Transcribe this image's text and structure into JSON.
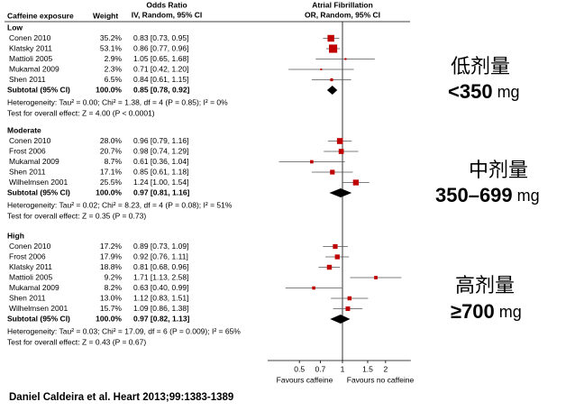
{
  "chart_data": {
    "type": "forest",
    "header": {
      "study": "Caffeine exposure",
      "weight": "Weight",
      "ci_title": "Odds Ratio",
      "ci_method": "IV, Random, 95% CI",
      "plot_title": "Atrial Fibrillation",
      "plot_method": "OR, Random, 95% CI"
    },
    "xscale": "log",
    "xlim": [
      0.3,
      3.0
    ],
    "xticks": [
      0.5,
      0.7,
      1,
      1.5,
      2
    ],
    "x_left_label": "Favours caffeine",
    "x_right_label": "Favours no caffeine",
    "square_color": "#c00000",
    "line_color": "#555555",
    "diamond_color": "#000000",
    "groups": [
      {
        "name": "Low",
        "studies": [
          {
            "name": "Conen 2010",
            "weight": 35.2,
            "weight_label": "35.2%",
            "or": 0.83,
            "lower": 0.73,
            "upper": 0.95,
            "ci_label": "0.83 [0.73, 0.95]"
          },
          {
            "name": "Klatsky 2011",
            "weight": 53.1,
            "weight_label": "53.1%",
            "or": 0.86,
            "lower": 0.77,
            "upper": 0.96,
            "ci_label": "0.86 [0.77, 0.96]"
          },
          {
            "name": "Mattioli 2005",
            "weight": 2.9,
            "weight_label": "2.9%",
            "or": 1.05,
            "lower": 0.65,
            "upper": 1.68,
            "ci_label": "1.05 [0.65, 1.68]"
          },
          {
            "name": "Mukamal 2009",
            "weight": 2.3,
            "weight_label": "2.3%",
            "or": 0.71,
            "lower": 0.42,
            "upper": 1.2,
            "ci_label": "0.71 [0.42, 1.20]"
          },
          {
            "name": "Shen 2011",
            "weight": 6.5,
            "weight_label": "6.5%",
            "or": 0.84,
            "lower": 0.61,
            "upper": 1.15,
            "ci_label": "0.84 [0.61, 1.15]"
          }
        ],
        "subtotal": {
          "name": "Subtotal (95% CI)",
          "weight": 100.0,
          "weight_label": "100.0%",
          "or": 0.85,
          "lower": 0.78,
          "upper": 0.92,
          "ci_label": "0.85 [0.78, 0.92]"
        },
        "heterogeneity": "Heterogeneity: Tau² = 0.00; Chi² = 1.38, df = 4 (P = 0.85); I² = 0%",
        "test": "Test for overall effect: Z = 4.00 (P < 0.0001)"
      },
      {
        "name": "Moderate",
        "studies": [
          {
            "name": "Conen 2010",
            "weight": 28.0,
            "weight_label": "28.0%",
            "or": 0.96,
            "lower": 0.79,
            "upper": 1.16,
            "ci_label": "0.96 [0.79, 1.16]"
          },
          {
            "name": "Frost 2006",
            "weight": 20.7,
            "weight_label": "20.7%",
            "or": 0.98,
            "lower": 0.74,
            "upper": 1.29,
            "ci_label": "0.98 [0.74, 1.29]"
          },
          {
            "name": "Mukamal 2009",
            "weight": 8.7,
            "weight_label": "8.7%",
            "or": 0.61,
            "lower": 0.36,
            "upper": 1.04,
            "ci_label": "0.61 [0.36, 1.04]"
          },
          {
            "name": "Shen 2011",
            "weight": 17.1,
            "weight_label": "17.1%",
            "or": 0.85,
            "lower": 0.61,
            "upper": 1.18,
            "ci_label": "0.85 [0.61, 1.18]"
          },
          {
            "name": "Wilhelmsen 2001",
            "weight": 25.5,
            "weight_label": "25.5%",
            "or": 1.24,
            "lower": 1.0,
            "upper": 1.54,
            "ci_label": "1.24 [1.00, 1.54]"
          }
        ],
        "subtotal": {
          "name": "Subtotal (95% CI)",
          "weight": 100.0,
          "weight_label": "100.0%",
          "or": 0.97,
          "lower": 0.81,
          "upper": 1.16,
          "ci_label": "0.97 [0.81, 1.16]"
        },
        "heterogeneity": "Heterogeneity: Tau² = 0.02; Chi² = 8.23, df = 4 (P = 0.08); I² = 51%",
        "test": "Test for overall effect: Z = 0.35 (P = 0.73)"
      },
      {
        "name": "High",
        "studies": [
          {
            "name": "Conen 2010",
            "weight": 17.2,
            "weight_label": "17.2%",
            "or": 0.89,
            "lower": 0.73,
            "upper": 1.09,
            "ci_label": "0.89 [0.73, 1.09]"
          },
          {
            "name": "Frost 2006",
            "weight": 17.9,
            "weight_label": "17.9%",
            "or": 0.92,
            "lower": 0.76,
            "upper": 1.11,
            "ci_label": "0.92 [0.76, 1.11]"
          },
          {
            "name": "Klatsky 2011",
            "weight": 18.8,
            "weight_label": "18.8%",
            "or": 0.81,
            "lower": 0.68,
            "upper": 0.96,
            "ci_label": "0.81 [0.68, 0.96]"
          },
          {
            "name": "Mattioli 2005",
            "weight": 9.2,
            "weight_label": "9.2%",
            "or": 1.71,
            "lower": 1.13,
            "upper": 2.58,
            "ci_label": "1.71 [1.13, 2.58]"
          },
          {
            "name": "Mukamal 2009",
            "weight": 8.2,
            "weight_label": "8.2%",
            "or": 0.63,
            "lower": 0.4,
            "upper": 0.99,
            "ci_label": "0.63 [0.40, 0.99]"
          },
          {
            "name": "Shen 2011",
            "weight": 13.0,
            "weight_label": "13.0%",
            "or": 1.12,
            "lower": 0.83,
            "upper": 1.51,
            "ci_label": "1.12 [0.83, 1.51]"
          },
          {
            "name": "Wilhelmsen 2001",
            "weight": 15.7,
            "weight_label": "15.7%",
            "or": 1.09,
            "lower": 0.86,
            "upper": 1.38,
            "ci_label": "1.09 [0.86, 1.38]"
          }
        ],
        "subtotal": {
          "name": "Subtotal (95% CI)",
          "weight": 100.0,
          "weight_label": "100.0%",
          "or": 0.97,
          "lower": 0.82,
          "upper": 1.13,
          "ci_label": "0.97 [0.82, 1.13]"
        },
        "heterogeneity": "Heterogeneity: Tau² = 0.03; Chi² = 17.09, df = 6 (P = 0.009); I² = 65%",
        "test": "Test for overall effect: Z = 0.43 (P = 0.67)"
      }
    ],
    "annotations": [
      {
        "line1": "低剂量",
        "value": "<350",
        "unit": "mg"
      },
      {
        "line1": "中剂量",
        "value": "350–699",
        "unit": "mg"
      },
      {
        "line1": "高剂量",
        "value": "≥700",
        "unit": "mg"
      }
    ],
    "citation": "Daniel Caldeira et al. Heart 2013;99:1383-1389"
  }
}
